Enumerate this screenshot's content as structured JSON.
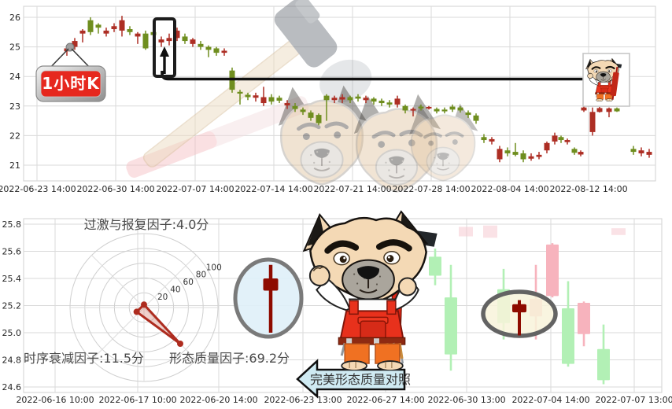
{
  "chart_data": [
    {
      "type": "candlestick",
      "panel": "top",
      "timeframe_badge": "1小时K",
      "up_color": "#ad2e24",
      "down_color": "#6f8e1f",
      "ylim": [
        20.7,
        26.3
      ],
      "y_ticks": [
        "26",
        "25",
        "24",
        "23",
        "22",
        "21"
      ],
      "x_tick_labels": [
        "2022-06-23 14:00",
        "2022-06-30 14:00",
        "2022-07-07 14:00",
        "2022-07-14 14:00",
        "2022-07-21 14:00",
        "2022-07-28 14:00",
        "2022-08-04 14:00",
        "2022-08-12 14:00"
      ],
      "hline_value": 24.0,
      "grid": true,
      "candles": [
        [
          85,
          25.05,
          24.95,
          24.85,
          24.7,
          "u"
        ],
        [
          95,
          25.3,
          25.2,
          25.0,
          24.9,
          "u"
        ],
        [
          105,
          25.6,
          25.55,
          25.45,
          25.15,
          "u"
        ],
        [
          115,
          26.0,
          25.9,
          25.5,
          25.4,
          "d"
        ],
        [
          125,
          25.8,
          25.75,
          25.65,
          25.45,
          "d"
        ],
        [
          135,
          25.65,
          25.55,
          25.45,
          25.35,
          "u"
        ],
        [
          145,
          25.8,
          25.7,
          25.6,
          25.5,
          "u"
        ],
        [
          155,
          26.05,
          25.9,
          25.55,
          25.35,
          "u"
        ],
        [
          165,
          25.7,
          25.6,
          25.5,
          25.4,
          "d"
        ],
        [
          175,
          25.5,
          25.45,
          25.35,
          25.1,
          "u"
        ],
        [
          185,
          25.55,
          25.45,
          24.95,
          24.9,
          "d"
        ],
        [
          195,
          25.6,
          25.5,
          25.4,
          25.3,
          "d"
        ],
        [
          205,
          25.35,
          25.25,
          25.15,
          25.0,
          "u"
        ],
        [
          215,
          25.45,
          25.3,
          25.2,
          25.05,
          "u"
        ],
        [
          225,
          25.65,
          25.55,
          25.3,
          25.2,
          "u"
        ],
        [
          235,
          25.45,
          25.35,
          25.2,
          25.1,
          "d"
        ],
        [
          245,
          25.3,
          25.25,
          25.1,
          25.0,
          "u"
        ],
        [
          255,
          25.2,
          25.1,
          25.0,
          24.9,
          "d"
        ],
        [
          265,
          25.05,
          25.0,
          24.9,
          24.65,
          "d"
        ],
        [
          275,
          25.0,
          24.95,
          24.8,
          24.7,
          "d"
        ],
        [
          285,
          24.95,
          24.87,
          24.8,
          24.7,
          "u"
        ],
        [
          295,
          24.3,
          24.2,
          23.55,
          23.45,
          "d"
        ],
        [
          305,
          23.55,
          23.48,
          23.42,
          23.05,
          "d"
        ],
        [
          315,
          23.45,
          23.38,
          23.3,
          23.2,
          "d"
        ],
        [
          325,
          23.45,
          23.36,
          23.28,
          23.15,
          "u"
        ],
        [
          335,
          23.65,
          23.3,
          23.1,
          23.0,
          "u"
        ],
        [
          345,
          23.4,
          23.3,
          23.15,
          23.05,
          "d"
        ],
        [
          355,
          23.35,
          23.28,
          23.18,
          23.1,
          "d"
        ],
        [
          365,
          23.2,
          23.1,
          23.02,
          22.9,
          "u"
        ],
        [
          375,
          23.1,
          23.0,
          22.9,
          22.8,
          "d"
        ],
        [
          385,
          22.95,
          22.88,
          22.8,
          22.7,
          "d"
        ],
        [
          395,
          22.85,
          22.78,
          22.6,
          22.5,
          "d"
        ],
        [
          405,
          22.75,
          22.7,
          22.42,
          22.35,
          "d"
        ],
        [
          415,
          23.4,
          23.35,
          23.2,
          22.5,
          "d"
        ],
        [
          425,
          23.35,
          23.28,
          23.2,
          23.1,
          "u"
        ],
        [
          435,
          23.4,
          23.3,
          23.22,
          23.1,
          "u"
        ],
        [
          445,
          23.35,
          23.3,
          23.2,
          23.1,
          "d"
        ],
        [
          455,
          23.4,
          23.32,
          23.25,
          23.15,
          "d"
        ],
        [
          465,
          23.35,
          23.28,
          23.2,
          23.1,
          "u"
        ],
        [
          475,
          23.3,
          23.25,
          23.15,
          23.05,
          "d"
        ],
        [
          485,
          23.25,
          23.18,
          23.1,
          23.0,
          "d"
        ],
        [
          495,
          23.2,
          23.12,
          23.05,
          22.95,
          "d"
        ],
        [
          505,
          23.35,
          23.25,
          23.05,
          22.95,
          "u"
        ],
        [
          515,
          23.05,
          23.0,
          22.85,
          22.75,
          "d"
        ],
        [
          525,
          22.95,
          22.9,
          22.85,
          22.65,
          "u"
        ],
        [
          535,
          23.05,
          22.98,
          22.92,
          22.85,
          "d"
        ],
        [
          545,
          23.0,
          22.97,
          22.93,
          22.88,
          "u"
        ],
        [
          555,
          22.95,
          22.9,
          22.82,
          22.75,
          "d"
        ],
        [
          565,
          22.95,
          22.88,
          22.82,
          22.75,
          "d"
        ],
        [
          575,
          23.05,
          22.98,
          22.88,
          22.8,
          "d"
        ],
        [
          585,
          23.0,
          22.95,
          22.85,
          22.78,
          "d"
        ],
        [
          595,
          22.85,
          22.78,
          22.7,
          22.6,
          "d"
        ],
        [
          605,
          22.75,
          22.68,
          22.5,
          22.4,
          "d"
        ],
        [
          615,
          22.05,
          21.95,
          21.85,
          21.75,
          "d"
        ],
        [
          625,
          21.95,
          21.88,
          21.8,
          21.7,
          "u"
        ],
        [
          635,
          21.65,
          21.55,
          21.2,
          21.1,
          "u"
        ],
        [
          645,
          21.6,
          21.5,
          21.4,
          21.3,
          "d"
        ],
        [
          655,
          21.75,
          21.45,
          21.35,
          21.3,
          "d"
        ],
        [
          665,
          21.5,
          21.4,
          21.2,
          21.1,
          "d"
        ],
        [
          675,
          21.4,
          21.3,
          21.22,
          21.15,
          "u"
        ],
        [
          685,
          21.45,
          21.35,
          21.28,
          21.2,
          "u"
        ],
        [
          695,
          21.8,
          21.75,
          21.5,
          21.4,
          "u"
        ],
        [
          705,
          22.1,
          22.0,
          21.8,
          21.7,
          "u"
        ],
        [
          713,
          22.0,
          21.95,
          21.85,
          21.75,
          "d"
        ],
        [
          721,
          21.9,
          21.85,
          21.78,
          21.7,
          "u"
        ],
        [
          730,
          21.6,
          21.55,
          21.42,
          21.35,
          "d"
        ],
        [
          738,
          21.5,
          21.45,
          21.36,
          21.3,
          "u"
        ],
        [
          742,
          23.0,
          22.95,
          22.85,
          22.8,
          "u"
        ],
        [
          753,
          22.95,
          22.8,
          22.12,
          22.0,
          "u"
        ],
        [
          762,
          22.97,
          22.93,
          22.8,
          22.78,
          "u"
        ],
        [
          774,
          22.95,
          22.92,
          22.8,
          22.62,
          "u"
        ],
        [
          784,
          22.95,
          22.92,
          22.82,
          22.8,
          "d"
        ],
        [
          805,
          21.65,
          21.55,
          21.45,
          21.35,
          "d"
        ],
        [
          815,
          21.6,
          21.5,
          21.4,
          21.3,
          "u"
        ],
        [
          825,
          21.55,
          21.45,
          21.35,
          21.25,
          "u"
        ]
      ]
    },
    {
      "type": "radar",
      "panel": "bottom-left",
      "axes": [
        "过激与报复因子",
        "时序衰减因子",
        "形态质量因子"
      ],
      "values": [
        4.0,
        11.5,
        69.2
      ],
      "unit": "分",
      "ring_ticks": [
        "20",
        "40",
        "60",
        "80",
        "100"
      ],
      "rmax": 100,
      "axis_angles_deg": [
        90,
        210,
        315
      ],
      "accent_color": "#ae2c1f",
      "labels": {
        "top": "过激与报复因子:4.0分",
        "bottom_left": "时序衰减因子:11.5分",
        "bottom_right": "形态质量因子:69.2分"
      }
    },
    {
      "type": "candlestick",
      "panel": "bottom",
      "up_color": "#f7b3bd",
      "down_color": "#b2f0b5",
      "pattern_color": "#8e0b00",
      "ghost_color": "#f6c6ce",
      "ylim": [
        24.55,
        25.85
      ],
      "y_ticks": [
        "25.8",
        "25.6",
        "25.4",
        "25.2",
        "25.0",
        "24.8",
        "24.6"
      ],
      "x_tick_labels": [
        "2022-06-16 10:00",
        "2022-06-17 10:00",
        "2022-06-20 14:00",
        "2022-06-23 13:00",
        "2022-06-27 14:00",
        "2022-06-30 13:00",
        "2022-07-04 14:00",
        "2022-07-07 13:00"
      ],
      "callout": "完美形态质量对照",
      "candles": [
        [
          553,
          25.62,
          25.56,
          25.42,
          25.35,
          "d"
        ],
        [
          573,
          25.5,
          25.26,
          24.84,
          24.72,
          "d"
        ],
        [
          640,
          25.47,
          25.32,
          25.07,
          24.95,
          "d"
        ],
        [
          681,
          25.5,
          25.25,
          25.12,
          24.95,
          "u"
        ],
        [
          702,
          25.66,
          25.65,
          25.27,
          25.26,
          "u"
        ],
        [
          722,
          25.38,
          25.18,
          24.77,
          24.75,
          "d"
        ],
        [
          742,
          25.23,
          25.22,
          24.99,
          24.9,
          "u"
        ],
        [
          767,
          25.06,
          24.88,
          24.65,
          24.62,
          "d"
        ]
      ],
      "ghost_candles": [
        [
          592,
          25.78,
          25.71
        ],
        [
          623,
          25.79,
          25.7
        ],
        [
          786,
          25.77,
          25.72
        ]
      ],
      "pattern_candles": [
        {
          "x": 344,
          "hi": 25.5,
          "top": 25.4,
          "bot": 25.31,
          "lo": 25.0,
          "head_w": 19,
          "wick_w": 4.5,
          "ellipse": "reference"
        },
        {
          "x": 660,
          "hi": 25.24,
          "top": 25.21,
          "bot": 25.15,
          "lo": 24.98,
          "head_w": 18,
          "wick_w": 4,
          "ellipse": "actual"
        }
      ]
    }
  ]
}
